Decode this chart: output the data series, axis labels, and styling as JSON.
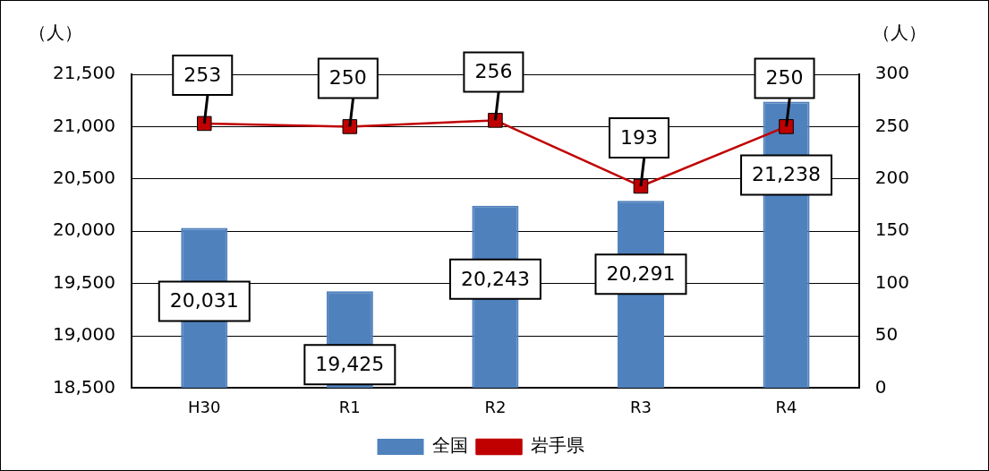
{
  "chart_data": {
    "type": "bar",
    "categories": [
      "H30",
      "R1",
      "R2",
      "R3",
      "R4"
    ],
    "series": [
      {
        "name": "全国",
        "color": "#4f81bd",
        "values": [
          20031,
          19425,
          20243,
          20291,
          21238
        ],
        "value_labels": [
          "20,031",
          "19,425",
          "20,243",
          "20,291",
          "21,238"
        ]
      },
      {
        "name": "岩手県",
        "type": "line",
        "axis": "y2",
        "color": "#c00000",
        "values": [
          253,
          250,
          256,
          193,
          250
        ]
      }
    ],
    "ylabel": "（人）",
    "y2label": "（人）",
    "ylim": [
      18500,
      21500
    ],
    "yticks": [
      {
        "value": 18500,
        "label": "18,500"
      },
      {
        "value": 19000,
        "label": "19,000"
      },
      {
        "value": 19500,
        "label": "19,500"
      },
      {
        "value": 20000,
        "label": "20,000"
      },
      {
        "value": 20500,
        "label": "20,500"
      },
      {
        "value": 21000,
        "label": "21,000"
      },
      {
        "value": 21500,
        "label": "21,500"
      }
    ],
    "y2lim": [
      0,
      300
    ],
    "y2ticks": [
      0,
      50,
      100,
      150,
      200,
      250,
      300
    ],
    "grid": "y",
    "legend": "bottom",
    "marker": "square",
    "data_labels": true
  }
}
